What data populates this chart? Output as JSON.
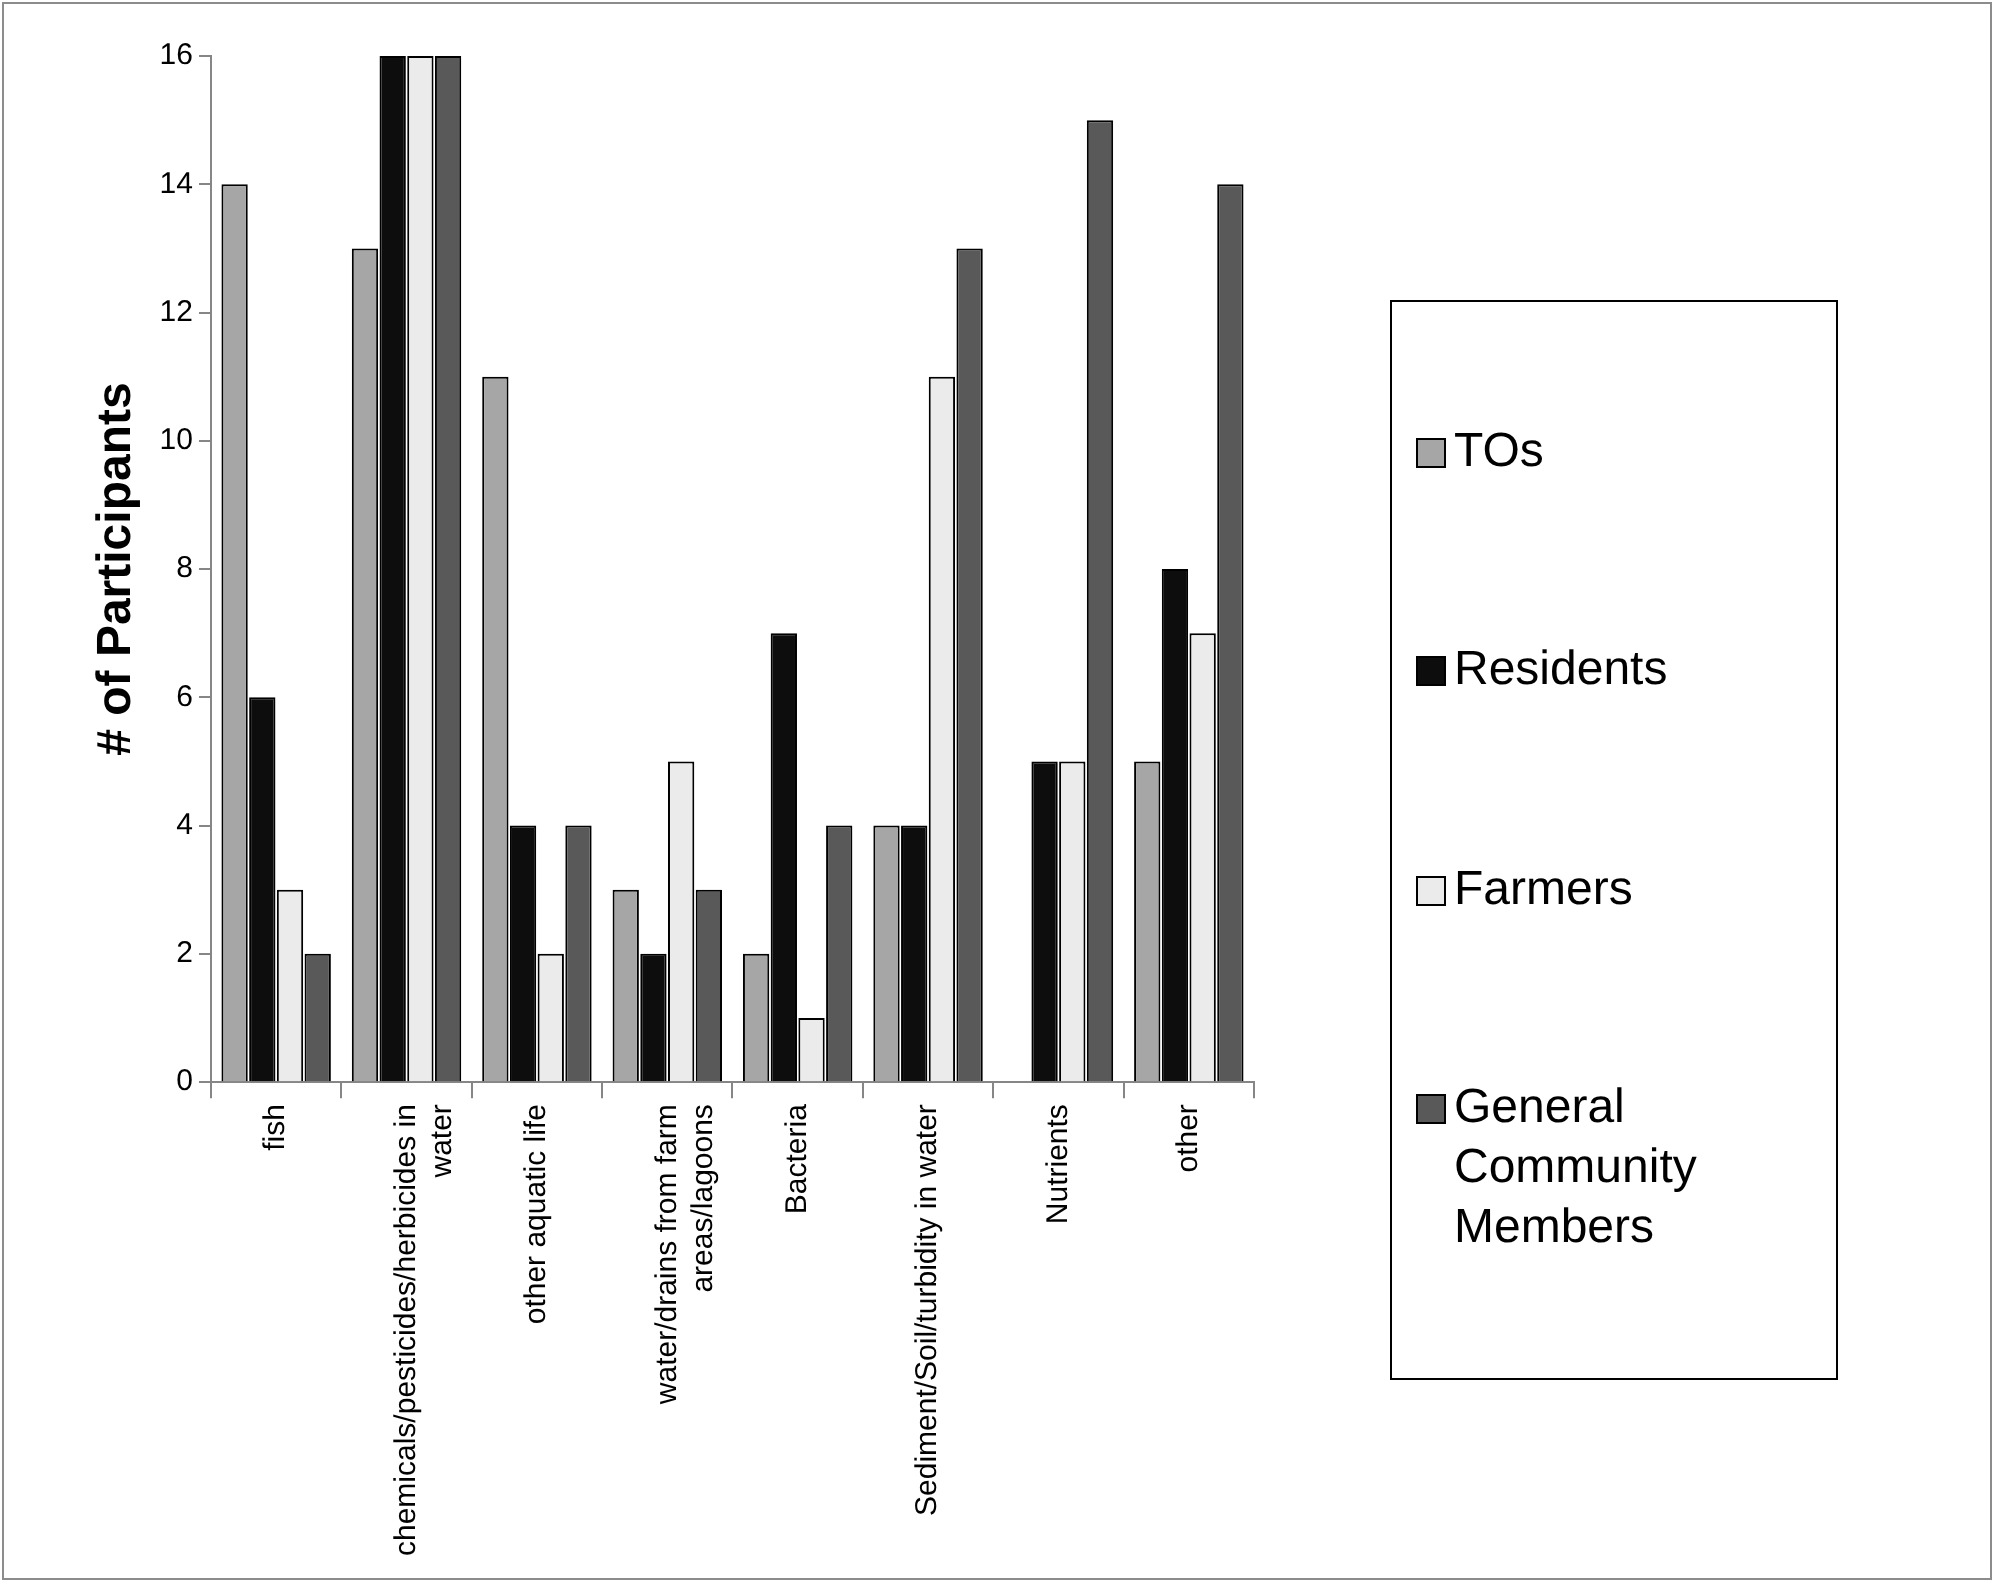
{
  "chart_data": {
    "type": "bar",
    "ylabel": "# of Participants",
    "categories": [
      "fish",
      "chemicals/pesticides/herbicides in water",
      "other aquatic life",
      "water/drains from farm areas/lagoons",
      "Bacteria",
      "Sediment/Soil/turbidity in water",
      "Nutrients",
      "other"
    ],
    "series": [
      {
        "name": "TOs",
        "color": "#a6a6a6",
        "values": [
          14,
          13,
          11,
          3,
          2,
          4,
          0,
          5
        ]
      },
      {
        "name": "Residents",
        "color": "#0d0d0d",
        "values": [
          6,
          16,
          4,
          2,
          7,
          4,
          5,
          8
        ]
      },
      {
        "name": "Farmers",
        "color": "#ebebeb",
        "values": [
          3,
          16,
          2,
          5,
          1,
          11,
          5,
          7
        ]
      },
      {
        "name": "General Community Members",
        "color": "#595959",
        "values": [
          2,
          16,
          4,
          3,
          4,
          13,
          15,
          14
        ]
      }
    ],
    "ylim": [
      0,
      16
    ],
    "yticks": [
      0,
      2,
      4,
      6,
      8,
      10,
      12,
      14,
      16
    ],
    "grid": false,
    "legend": "right"
  }
}
